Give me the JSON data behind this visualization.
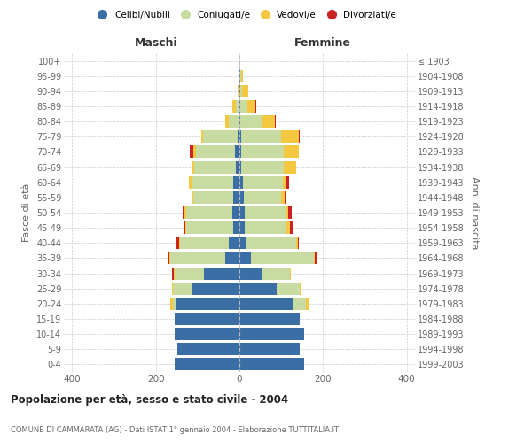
{
  "age_groups": [
    "0-4",
    "5-9",
    "10-14",
    "15-19",
    "20-24",
    "25-29",
    "30-34",
    "35-39",
    "40-44",
    "45-49",
    "50-54",
    "55-59",
    "60-64",
    "65-69",
    "70-74",
    "75-79",
    "80-84",
    "85-89",
    "90-94",
    "95-99",
    "100+"
  ],
  "birth_years": [
    "1999-2003",
    "1994-1998",
    "1989-1993",
    "1984-1988",
    "1979-1983",
    "1974-1978",
    "1969-1973",
    "1964-1968",
    "1959-1963",
    "1954-1958",
    "1949-1953",
    "1944-1948",
    "1939-1943",
    "1934-1938",
    "1929-1933",
    "1924-1928",
    "1919-1923",
    "1914-1918",
    "1909-1913",
    "1904-1908",
    "≤ 1903"
  ],
  "colors": {
    "celibe": "#3b6ea5",
    "coniugato": "#c8dba0",
    "vedovo": "#f5c842",
    "divorziato": "#cc2222"
  },
  "maschi": {
    "celibe": [
      155,
      148,
      155,
      155,
      150,
      115,
      85,
      35,
      25,
      15,
      18,
      15,
      15,
      8,
      10,
      5,
      0,
      0,
      0,
      0,
      0
    ],
    "coniugato": [
      0,
      0,
      0,
      0,
      10,
      45,
      70,
      130,
      118,
      112,
      110,
      95,
      100,
      100,
      95,
      82,
      25,
      8,
      2,
      0,
      0
    ],
    "vedovo": [
      0,
      0,
      0,
      0,
      5,
      2,
      2,
      2,
      2,
      2,
      3,
      5,
      5,
      5,
      5,
      5,
      10,
      8,
      2,
      0,
      0
    ],
    "divorziato": [
      0,
      0,
      0,
      0,
      0,
      0,
      5,
      5,
      5,
      5,
      5,
      0,
      0,
      0,
      8,
      0,
      0,
      0,
      0,
      0,
      0
    ]
  },
  "femmine": {
    "nubile": [
      155,
      145,
      155,
      145,
      130,
      90,
      55,
      28,
      18,
      12,
      12,
      10,
      8,
      5,
      5,
      5,
      2,
      2,
      2,
      2,
      0
    ],
    "coniugata": [
      0,
      0,
      0,
      0,
      30,
      55,
      65,
      150,
      118,
      100,
      100,
      90,
      95,
      100,
      100,
      95,
      50,
      18,
      5,
      2,
      0
    ],
    "vedova": [
      0,
      0,
      0,
      0,
      5,
      2,
      2,
      2,
      5,
      8,
      5,
      8,
      10,
      30,
      38,
      42,
      32,
      18,
      15,
      5,
      0
    ],
    "divorziata": [
      0,
      0,
      0,
      0,
      0,
      0,
      2,
      5,
      2,
      8,
      8,
      2,
      5,
      0,
      0,
      2,
      2,
      2,
      0,
      0,
      0
    ]
  },
  "title": "Popolazione per età, sesso e stato civile - 2004",
  "subtitle": "COMUNE DI CAMMARATA (AG) - Dati ISTAT 1° gennaio 2004 - Elaborazione TUTTITALIA.IT",
  "xlabel_left": "Maschi",
  "xlabel_right": "Femmine",
  "ylabel_left": "Fasce di età",
  "ylabel_right": "Anni di nascita",
  "xlim": 420,
  "legend_labels": [
    "Celibi/Nubili",
    "Coniugati/e",
    "Vedovi/e",
    "Divorziati/e"
  ]
}
